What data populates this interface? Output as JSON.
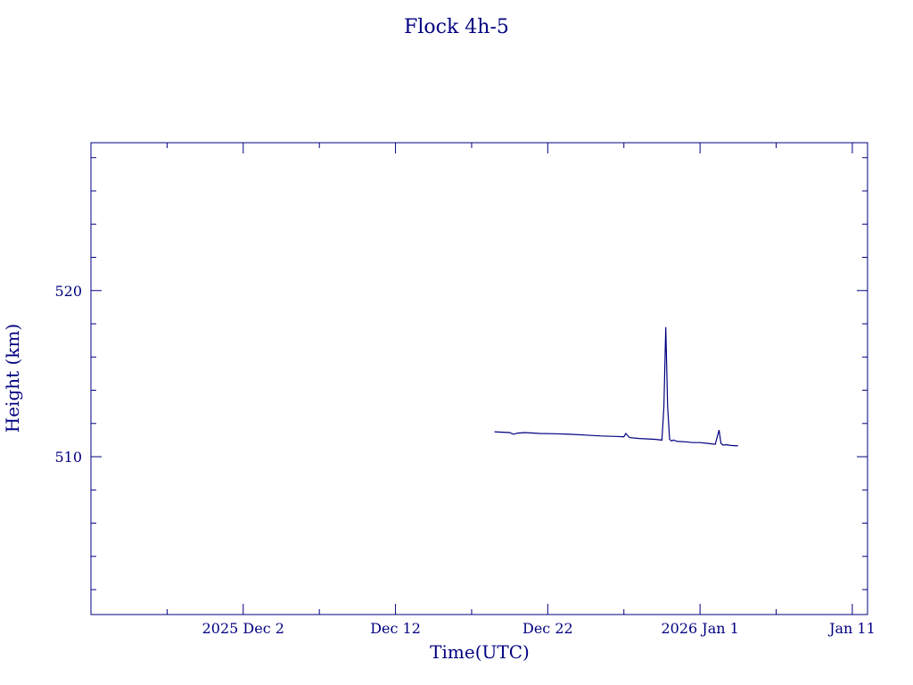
{
  "chart_data": {
    "type": "line",
    "title": "Flock 4h-5",
    "xlabel": "Time(UTC)",
    "ylabel": "Height (km)",
    "color": "#000080",
    "xlim": [
      "2025-11-22",
      "2026-01-12"
    ],
    "ylim": [
      500.5,
      528.9
    ],
    "x_ticks": [
      {
        "date": "2025-12-02",
        "label": "2025 Dec  2"
      },
      {
        "date": "2025-12-12",
        "label": "Dec 12"
      },
      {
        "date": "2025-12-22",
        "label": "Dec 22"
      },
      {
        "date": "2026-01-01",
        "label": "2026 Jan  1"
      },
      {
        "date": "2026-01-11",
        "label": "Jan 11"
      }
    ],
    "y_ticks": [
      510,
      520
    ],
    "grid": false,
    "series": [
      {
        "x": [
          "2025-12-18 12:00",
          "2025-12-19 12:00",
          "2025-12-19 18:00",
          "2025-12-20 00:00",
          "2025-12-20 12:00",
          "2025-12-21 12:00",
          "2025-12-22 12:00",
          "2025-12-23 12:00",
          "2025-12-24 12:00",
          "2025-12-25 12:00",
          "2025-12-26 12:00",
          "2025-12-27 00:00",
          "2025-12-27 03:00",
          "2025-12-27 09:00",
          "2025-12-28 00:00",
          "2025-12-29 00:00",
          "2025-12-29 12:00",
          "2025-12-29 15:00",
          "2025-12-29 18:00",
          "2025-12-29 21:00",
          "2025-12-30 00:00",
          "2025-12-30 03:00",
          "2025-12-30 06:00",
          "2025-12-30 12:00",
          "2025-12-31 00:00",
          "2025-12-31 12:00",
          "2026-01-01 00:00",
          "2026-01-01 12:00",
          "2026-01-02 00:00",
          "2026-01-02 06:00",
          "2026-01-02 09:00",
          "2026-01-02 12:00",
          "2026-01-02 18:00",
          "2026-01-03 00:00",
          "2026-01-03 12:00"
        ],
        "y": [
          511.5,
          511.45,
          511.35,
          511.42,
          511.45,
          511.4,
          511.38,
          511.35,
          511.3,
          511.25,
          511.22,
          511.2,
          511.4,
          511.15,
          511.1,
          511.05,
          511.0,
          513.0,
          517.8,
          513.0,
          511.05,
          510.95,
          511.0,
          510.92,
          510.9,
          510.85,
          510.85,
          510.8,
          510.75,
          511.6,
          510.8,
          510.7,
          510.72,
          510.68,
          510.65
        ]
      }
    ]
  }
}
